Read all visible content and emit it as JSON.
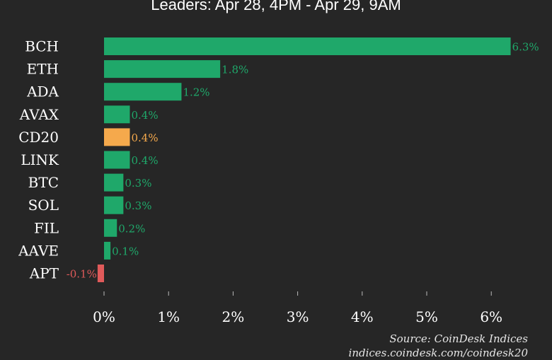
{
  "chart_data": {
    "type": "bar",
    "orientation": "horizontal",
    "title": "Leaders: Apr 28, 4PM - Apr 29, 9AM",
    "categories": [
      "BCH",
      "ETH",
      "ADA",
      "AVAX",
      "CD20",
      "LINK",
      "BTC",
      "SOL",
      "FIL",
      "AAVE",
      "APT"
    ],
    "values": [
      6.3,
      1.8,
      1.2,
      0.4,
      0.4,
      0.4,
      0.3,
      0.3,
      0.2,
      0.1,
      -0.1
    ],
    "value_labels": [
      "6.3%",
      "1.8%",
      "1.2%",
      "0.4%",
      "0.4%",
      "0.4%",
      "0.3%",
      "0.3%",
      "0.2%",
      "0.1%",
      "-0.1%"
    ],
    "x_ticks": [
      "0%",
      "1%",
      "2%",
      "3%",
      "4%",
      "5%",
      "6%"
    ],
    "xlim": [
      0,
      6
    ],
    "xlabel": "",
    "ylabel": "",
    "grid": false,
    "colors": {
      "positive": "#1fa86a",
      "highlight": "#f5a94c",
      "negative": "#e05a5a",
      "background": "#262626",
      "text": "#ffffff"
    },
    "highlight_category": "CD20"
  },
  "source": {
    "line1": "Source: CoinDesk Indices",
    "line2": "indices.coindesk.com/coindesk20"
  }
}
